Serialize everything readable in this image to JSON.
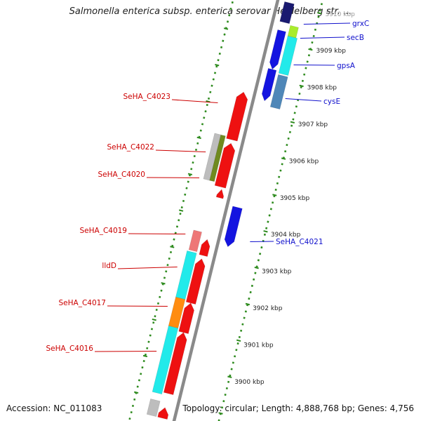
{
  "title": "Salmonella enterica subsp. enterica serovar Heidelberg str. ...",
  "footer": {
    "accession": "Accession: NC_011083",
    "topology": "Topology: circular; Length: 4,888,768 bp; Genes: 4,756"
  },
  "colors": {
    "backbone": "#8a8a8a",
    "tick_green": "#2e8b1e",
    "forward_gene": "#ee1111",
    "reverse_gene": "#1414e0",
    "forward_label": "#cc0000",
    "reverse_label": "#1010cc",
    "cyan_feature": "#22eaea",
    "orange_feature": "#ff8c10",
    "pink_feature": "#ee7777",
    "grey_feature": "#bdbdbd",
    "olive_feature": "#6f8a1f",
    "lime_feature": "#a9ec2c",
    "steel_feature": "#4f87b8",
    "navy_feature": "#1a1a70"
  },
  "scale_labels": [
    {
      "kbp": 3910,
      "label": "3910 kbp"
    },
    {
      "kbp": 3909,
      "label": "3909 kbp"
    },
    {
      "kbp": 3908,
      "label": "3908 kbp"
    },
    {
      "kbp": 3907,
      "label": "3907 kbp"
    },
    {
      "kbp": 3906,
      "label": "3906 kbp"
    },
    {
      "kbp": 3905,
      "label": "3905 kbp"
    },
    {
      "kbp": 3904,
      "label": "3904 kbp"
    },
    {
      "kbp": 3903,
      "label": "3903 kbp"
    },
    {
      "kbp": 3902,
      "label": "3902 kbp"
    },
    {
      "kbp": 3901,
      "label": "3901 kbp"
    },
    {
      "kbp": 3900,
      "label": "3900 kbp"
    }
  ],
  "genes_reverse": [
    {
      "name": "grxC"
    },
    {
      "name": "secB"
    },
    {
      "name": "gpsA"
    },
    {
      "name": "cysE"
    },
    {
      "name": "SeHA_C4021"
    }
  ],
  "genes_forward": [
    {
      "name": "SeHA_C4023"
    },
    {
      "name": "SeHA_C4022"
    },
    {
      "name": "SeHA_C4020"
    },
    {
      "name": "SeHA_C4019"
    },
    {
      "name": "lldD"
    },
    {
      "name": "SeHA_C4017"
    },
    {
      "name": "SeHA_C4016"
    }
  ]
}
